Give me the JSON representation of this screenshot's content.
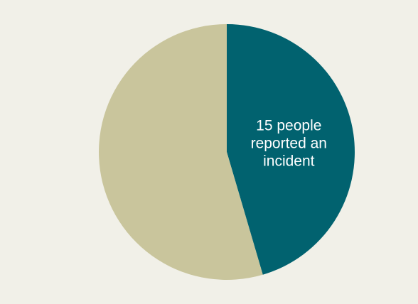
{
  "chart_data": {
    "type": "pie",
    "slices": [
      {
        "label_lines": [
          "15 people",
          "reported an",
          "incident"
        ],
        "value": 15,
        "color": "#01626f"
      },
      {
        "label_lines": [],
        "value": 18,
        "color": "#c9c59c"
      }
    ],
    "start_angle_deg": 0,
    "direction": "clockwise",
    "legend": "none"
  },
  "colors": {
    "background": "#f1f0e8"
  }
}
